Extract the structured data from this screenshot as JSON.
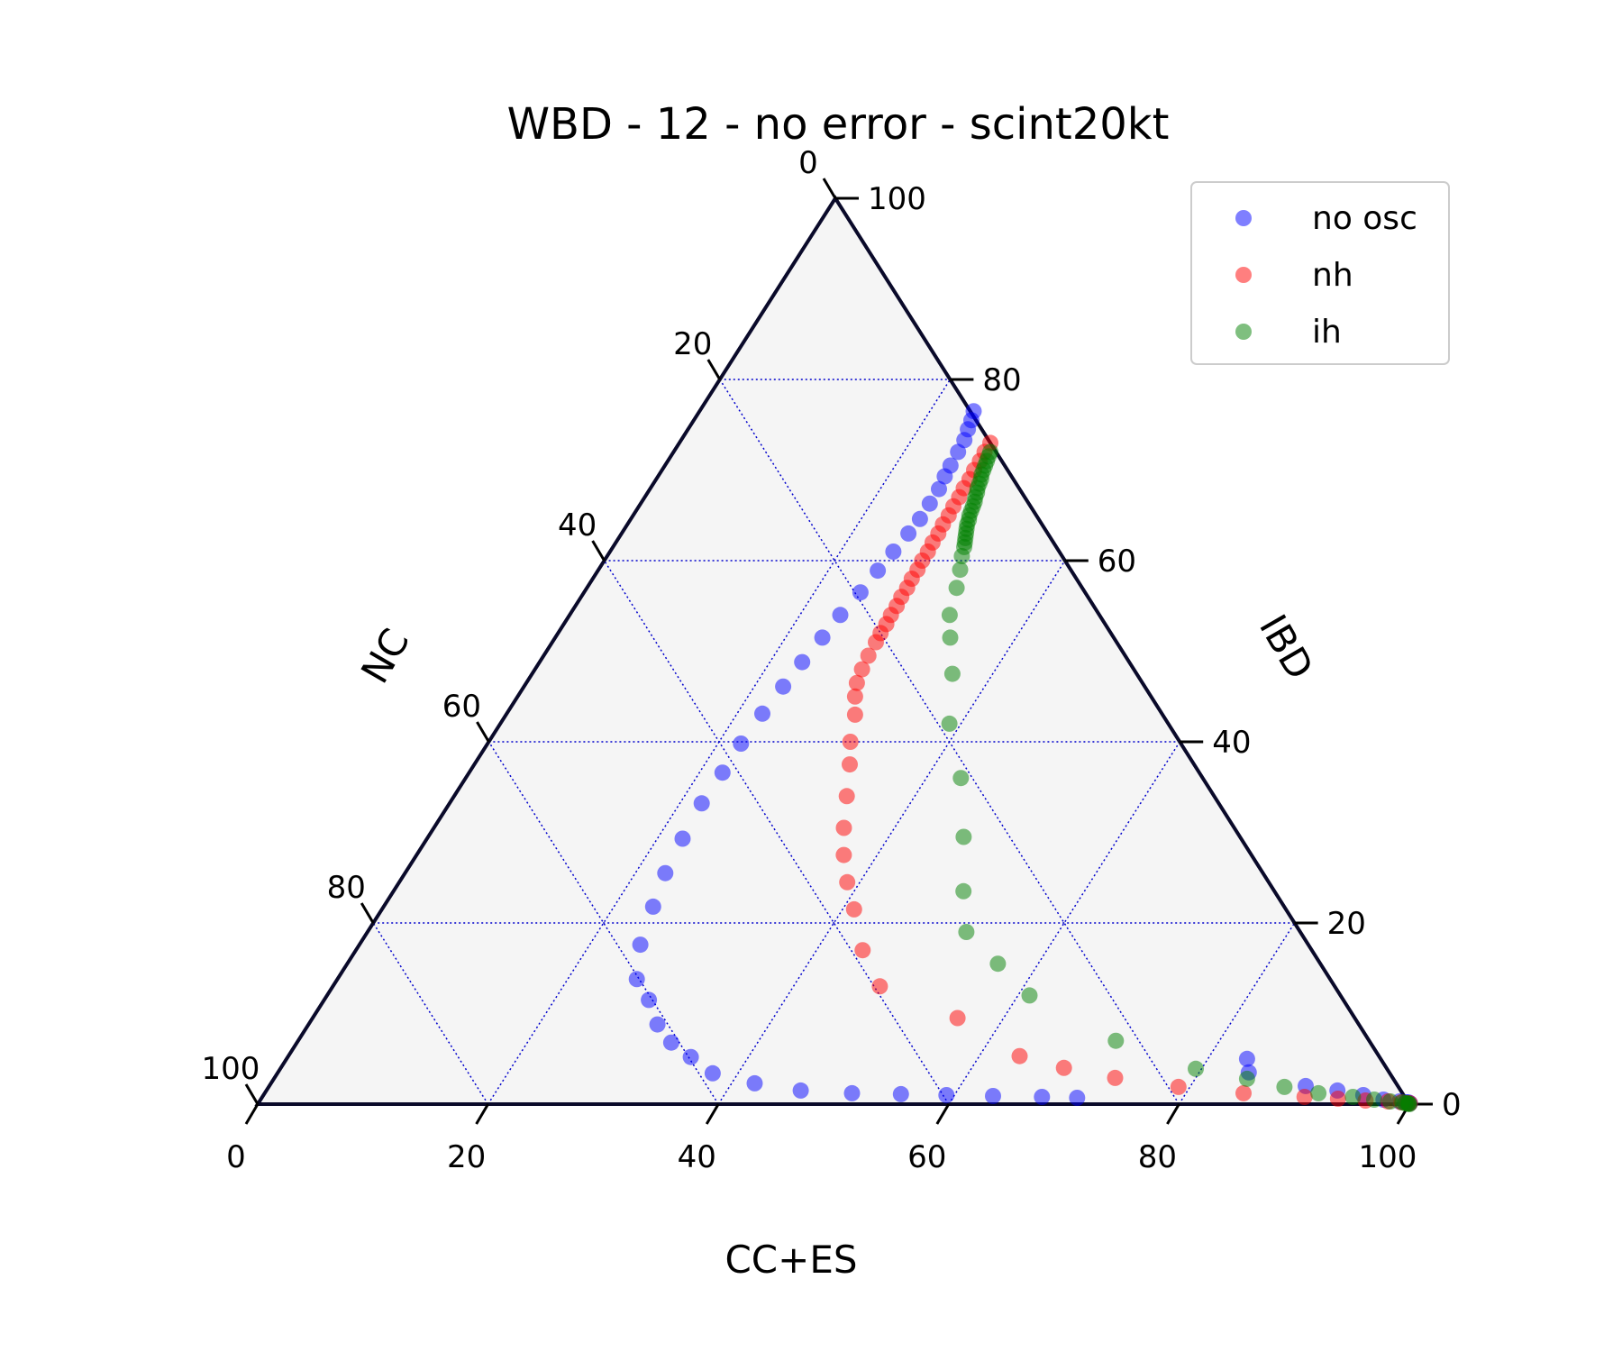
{
  "chart_data": {
    "type": "ternary-scatter",
    "title": "WBD - 12 - no error - scint20kt",
    "axes": {
      "bottom": "CC+ES",
      "left": "NC",
      "right": "IBD"
    },
    "ticks": [
      "0",
      "20",
      "40",
      "60",
      "80",
      "100"
    ],
    "ticks_reversed": [
      "100",
      "80",
      "60",
      "40",
      "20",
      "0"
    ],
    "grid": true,
    "legend_position": "top-right",
    "series": [
      {
        "name": "no osc",
        "color": "#0000ff",
        "points": [
          [
            17.0,
            23.8,
            76.5
          ],
          [
            17.5,
            24.1,
            75.5
          ],
          [
            18.0,
            24.3,
            74.5
          ],
          [
            18.7,
            24.6,
            73.3
          ],
          [
            19.5,
            24.7,
            72.0
          ],
          [
            20.5,
            24.8,
            70.5
          ],
          [
            21.6,
            24.9,
            69.3
          ],
          [
            22.8,
            25.1,
            67.9
          ],
          [
            24.2,
            25.1,
            66.3
          ],
          [
            25.7,
            25.1,
            64.6
          ],
          [
            27.5,
            24.9,
            63.0
          ],
          [
            29.4,
            24.6,
            61.0
          ],
          [
            31.5,
            24.3,
            58.9
          ],
          [
            33.9,
            24.0,
            56.5
          ],
          [
            36.4,
            23.5,
            54.0
          ],
          [
            39.0,
            23.2,
            51.5
          ],
          [
            41.8,
            22.8,
            48.8
          ],
          [
            44.7,
            22.5,
            46.1
          ],
          [
            47.8,
            22.2,
            43.1
          ],
          [
            51.0,
            22.0,
            39.8
          ],
          [
            54.5,
            22.0,
            36.6
          ],
          [
            58.2,
            21.9,
            33.2
          ],
          [
            62.1,
            22.2,
            29.3
          ],
          [
            66.2,
            22.6,
            25.5
          ],
          [
            70.3,
            23.4,
            21.8
          ],
          [
            74.5,
            24.4,
            17.6
          ],
          [
            78.6,
            26.0,
            13.8
          ],
          [
            82.2,
            28.2,
            11.5
          ],
          [
            85.6,
            30.3,
            8.8
          ],
          [
            88.3,
            32.5,
            6.8
          ],
          [
            90.9,
            35.0,
            5.2
          ],
          [
            93.3,
            37.8,
            3.4
          ],
          [
            95.0,
            42.0,
            2.3
          ],
          [
            96.1,
            46.4,
            1.5
          ],
          [
            97.0,
            51.0,
            1.2
          ],
          [
            97.5,
            55.3,
            1.1
          ],
          [
            97.9,
            59.3,
            1.0
          ],
          [
            98.2,
            63.4,
            0.9
          ],
          [
            98.5,
            67.7,
            0.8
          ],
          [
            98.7,
            70.8,
            0.7
          ],
          [
            98.5,
            83.4,
            5.0
          ],
          [
            98.2,
            84.3,
            3.5
          ],
          [
            98.6,
            90.0,
            2.0
          ],
          [
            98.9,
            93.0,
            1.5
          ],
          [
            99.1,
            95.5,
            1.0
          ],
          [
            99.3,
            97.5,
            0.5
          ],
          [
            99.5,
            99.0,
            0.3
          ],
          [
            99.6,
            99.6,
            0.2
          ],
          [
            99.7,
            99.8,
            0.2
          ],
          [
            99.8,
            100.0,
            0.1
          ]
        ]
      },
      {
        "name": "nh",
        "color": "#ff0000",
        "points": [
          [
            24.0,
            27.0,
            73.0
          ],
          [
            25.0,
            27.0,
            72.0
          ],
          [
            26.0,
            27.1,
            71.0
          ],
          [
            27.0,
            27.1,
            70.0
          ],
          [
            28.0,
            27.2,
            69.0
          ],
          [
            29.0,
            27.2,
            68.0
          ],
          [
            30.0,
            27.3,
            67.0
          ],
          [
            31.0,
            27.3,
            66.0
          ],
          [
            32.0,
            27.4,
            65.0
          ],
          [
            33.0,
            27.4,
            64.0
          ],
          [
            34.0,
            27.5,
            63.0
          ],
          [
            35.0,
            27.5,
            62.0
          ],
          [
            36.0,
            27.6,
            61.0
          ],
          [
            37.0,
            27.6,
            60.0
          ],
          [
            38.0,
            27.7,
            59.0
          ],
          [
            39.0,
            27.7,
            58.0
          ],
          [
            40.0,
            27.8,
            57.0
          ],
          [
            41.0,
            27.8,
            56.0
          ],
          [
            42.0,
            27.9,
            55.0
          ],
          [
            43.0,
            27.9,
            54.0
          ],
          [
            44.0,
            28.0,
            53.0
          ],
          [
            45.0,
            28.0,
            52.0
          ],
          [
            46.5,
            28.1,
            51.0
          ],
          [
            48.0,
            28.2,
            49.5
          ],
          [
            49.5,
            28.4,
            48.0
          ],
          [
            51.0,
            28.7,
            46.5
          ],
          [
            52.5,
            29.3,
            45.0
          ],
          [
            54.5,
            30.3,
            43.0
          ],
          [
            57.0,
            31.4,
            40.0
          ],
          [
            59.5,
            32.6,
            37.5
          ],
          [
            62.5,
            34.1,
            34.0
          ],
          [
            65.5,
            35.6,
            30.5
          ],
          [
            68.0,
            37.1,
            27.5
          ],
          [
            70.5,
            38.9,
            24.5
          ],
          [
            73.5,
            41.0,
            21.5
          ],
          [
            77.0,
            44.0,
            17.0
          ],
          [
            79.5,
            47.5,
            13.0
          ],
          [
            84.0,
            56.0,
            9.5
          ],
          [
            89.0,
            63.5,
            5.3
          ],
          [
            91.5,
            68.0,
            4.0
          ],
          [
            93.5,
            73.0,
            2.9
          ],
          [
            96.0,
            79.0,
            1.9
          ],
          [
            97.5,
            85.0,
            1.2
          ],
          [
            98.3,
            90.5,
            0.8
          ],
          [
            98.8,
            93.5,
            0.6
          ],
          [
            99.2,
            96.0,
            0.4
          ],
          [
            99.5,
            98.0,
            0.3
          ],
          [
            99.7,
            99.2,
            0.2
          ],
          [
            99.8,
            99.8,
            0.1
          ],
          [
            99.9,
            100.0,
            0.1
          ]
        ]
      },
      {
        "name": "ih",
        "color": "#008000",
        "points": [
          [
            24.5,
            27.5,
            72.0
          ],
          [
            25.0,
            27.6,
            71.5
          ],
          [
            25.5,
            27.7,
            71.0
          ],
          [
            26.0,
            27.8,
            70.5
          ],
          [
            26.5,
            27.9,
            70.0
          ],
          [
            27.0,
            28.0,
            69.5
          ],
          [
            27.5,
            28.2,
            69.0
          ],
          [
            28.0,
            28.3,
            68.5
          ],
          [
            28.5,
            28.4,
            68.0
          ],
          [
            29.0,
            28.6,
            67.5
          ],
          [
            29.5,
            28.7,
            67.0
          ],
          [
            30.0,
            28.9,
            66.5
          ],
          [
            30.5,
            29.0,
            66.0
          ],
          [
            31.0,
            29.1,
            65.5
          ],
          [
            31.5,
            29.2,
            65.0
          ],
          [
            32.0,
            29.4,
            64.5
          ],
          [
            32.5,
            29.5,
            64.0
          ],
          [
            33.0,
            29.7,
            63.5
          ],
          [
            33.5,
            29.9,
            63.0
          ],
          [
            34.0,
            30.1,
            62.5
          ],
          [
            34.5,
            30.3,
            62.0
          ],
          [
            35.0,
            30.5,
            61.5
          ],
          [
            36.0,
            30.8,
            60.5
          ],
          [
            37.5,
            31.4,
            59.0
          ],
          [
            39.5,
            32.1,
            57.0
          ],
          [
            42.0,
            33.0,
            54.0
          ],
          [
            44.0,
            34.3,
            51.5
          ],
          [
            48.0,
            36.5,
            47.5
          ],
          [
            52.5,
            39.0,
            42.0
          ],
          [
            58.5,
            43.0,
            36.0
          ],
          [
            65.0,
            46.5,
            29.5
          ],
          [
            70.0,
            49.5,
            23.5
          ],
          [
            73.5,
            52.0,
            19.0
          ],
          [
            76.5,
            56.5,
            15.5
          ],
          [
            80.0,
            61.0,
            12.0
          ],
          [
            86.5,
            71.0,
            7.0
          ],
          [
            91.5,
            79.5,
            3.9
          ],
          [
            93.8,
            84.5,
            2.8
          ],
          [
            95.5,
            88.2,
            1.9
          ],
          [
            97.0,
            91.5,
            1.2
          ],
          [
            98.3,
            94.7,
            0.8
          ],
          [
            99.0,
            96.7,
            0.5
          ],
          [
            99.4,
            98.2,
            0.3
          ],
          [
            99.7,
            99.3,
            0.2
          ],
          [
            99.8,
            99.6,
            0.1
          ],
          [
            99.9,
            99.8,
            0.1
          ],
          [
            99.9,
            99.9,
            0.05
          ],
          [
            100.0,
            100.0,
            0.0
          ]
        ]
      }
    ]
  }
}
